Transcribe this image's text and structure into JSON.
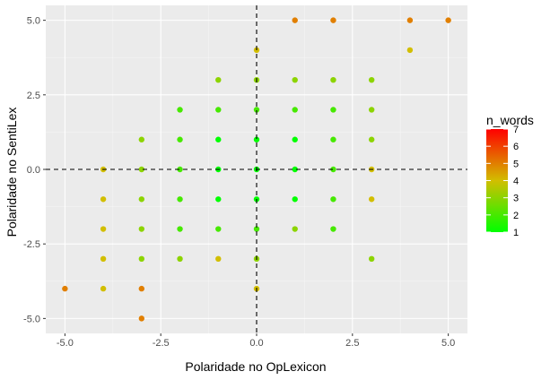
{
  "chart_data": {
    "type": "scatter",
    "xlabel": "Polaridade no OpLexicon",
    "ylabel": "Polaridade no SentiLex",
    "xlim": [
      -5.5,
      5.5
    ],
    "ylim": [
      -5.5,
      5.5
    ],
    "x_ticks": [
      -5,
      -2.5,
      0,
      2.5,
      5
    ],
    "x_tick_labels": [
      "-5.0",
      "-2.5",
      "0.0",
      "2.5",
      "5.0"
    ],
    "y_ticks": [
      -5,
      -2.5,
      0,
      2.5,
      5
    ],
    "y_tick_labels": [
      "-5.0",
      "-2.5",
      "0.0",
      "2.5",
      "5.0"
    ],
    "reference_lines": {
      "x": 0,
      "y": 0,
      "style": "dashed"
    },
    "background": "#ebebeb",
    "grid": true,
    "color_scale": {
      "title": "n_words",
      "min": 1,
      "max": 7,
      "breaks": [
        1,
        2,
        3,
        4,
        5,
        6,
        7
      ],
      "break_labels": [
        "1",
        "2",
        "3",
        "4",
        "5",
        "6",
        "7"
      ],
      "low_color": "#00ff00",
      "high_color": "#ff0000",
      "position": "right"
    },
    "points": [
      {
        "x": 1,
        "y": 5,
        "n": 5
      },
      {
        "x": 2,
        "y": 5,
        "n": 5
      },
      {
        "x": 4,
        "y": 5,
        "n": 5
      },
      {
        "x": 5,
        "y": 5,
        "n": 5
      },
      {
        "x": 0,
        "y": 4,
        "n": 4
      },
      {
        "x": 4,
        "y": 4,
        "n": 4
      },
      {
        "x": -1,
        "y": 3,
        "n": 3
      },
      {
        "x": 0,
        "y": 3,
        "n": 3
      },
      {
        "x": 1,
        "y": 3,
        "n": 3
      },
      {
        "x": 2,
        "y": 3,
        "n": 3
      },
      {
        "x": 3,
        "y": 3,
        "n": 3
      },
      {
        "x": -2,
        "y": 2,
        "n": 2
      },
      {
        "x": -1,
        "y": 2,
        "n": 2
      },
      {
        "x": 0,
        "y": 2,
        "n": 2
      },
      {
        "x": 1,
        "y": 2,
        "n": 2
      },
      {
        "x": 2,
        "y": 2,
        "n": 2
      },
      {
        "x": 3,
        "y": 2,
        "n": 3
      },
      {
        "x": -3,
        "y": 1,
        "n": 3
      },
      {
        "x": -2,
        "y": 1,
        "n": 2
      },
      {
        "x": -1,
        "y": 1,
        "n": 1
      },
      {
        "x": 0,
        "y": 1,
        "n": 1
      },
      {
        "x": 1,
        "y": 1,
        "n": 1
      },
      {
        "x": 2,
        "y": 1,
        "n": 2
      },
      {
        "x": 3,
        "y": 1,
        "n": 3
      },
      {
        "x": -4,
        "y": 0,
        "n": 4
      },
      {
        "x": -3,
        "y": 0,
        "n": 3
      },
      {
        "x": -2,
        "y": 0,
        "n": 2
      },
      {
        "x": -1,
        "y": 0,
        "n": 1
      },
      {
        "x": 0,
        "y": 0,
        "n": 1
      },
      {
        "x": 1,
        "y": 0,
        "n": 1
      },
      {
        "x": 2,
        "y": 0,
        "n": 2
      },
      {
        "x": 3,
        "y": 0,
        "n": 4
      },
      {
        "x": -4,
        "y": -1,
        "n": 4
      },
      {
        "x": -3,
        "y": -1,
        "n": 3
      },
      {
        "x": -2,
        "y": -1,
        "n": 2
      },
      {
        "x": -1,
        "y": -1,
        "n": 1
      },
      {
        "x": 0,
        "y": -1,
        "n": 1
      },
      {
        "x": 1,
        "y": -1,
        "n": 1
      },
      {
        "x": 2,
        "y": -1,
        "n": 2
      },
      {
        "x": 3,
        "y": -1,
        "n": 4
      },
      {
        "x": -4,
        "y": -2,
        "n": 4
      },
      {
        "x": -3,
        "y": -2,
        "n": 3
      },
      {
        "x": -2,
        "y": -2,
        "n": 2
      },
      {
        "x": -1,
        "y": -2,
        "n": 2
      },
      {
        "x": 0,
        "y": -2,
        "n": 2
      },
      {
        "x": 1,
        "y": -2,
        "n": 3
      },
      {
        "x": 2,
        "y": -2,
        "n": 2
      },
      {
        "x": -4,
        "y": -3,
        "n": 4
      },
      {
        "x": -3,
        "y": -3,
        "n": 3
      },
      {
        "x": -2,
        "y": -3,
        "n": 3
      },
      {
        "x": -1,
        "y": -3,
        "n": 4
      },
      {
        "x": 0,
        "y": -3,
        "n": 3
      },
      {
        "x": 3,
        "y": -3,
        "n": 3
      },
      {
        "x": -5,
        "y": -4,
        "n": 5
      },
      {
        "x": -4,
        "y": -4,
        "n": 4
      },
      {
        "x": -3,
        "y": -4,
        "n": 5
      },
      {
        "x": 0,
        "y": -4,
        "n": 4
      },
      {
        "x": -3,
        "y": -5,
        "n": 5
      }
    ]
  }
}
